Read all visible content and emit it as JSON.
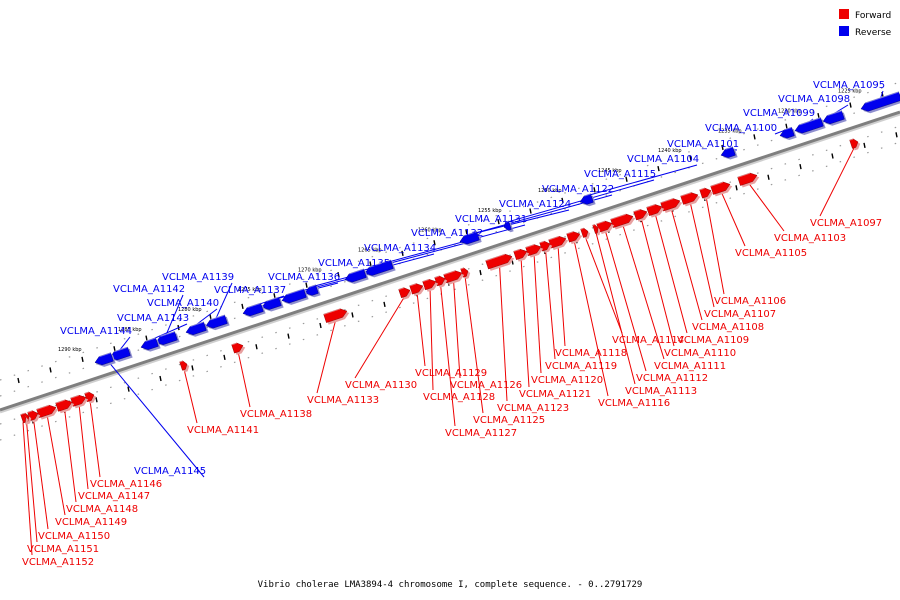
{
  "caption": "Vibrio cholerae LMA3894-4 chromosome I, complete sequence. - 0..2791729",
  "legend": [
    {
      "label": "Forward",
      "color": "#ee0000"
    },
    {
      "label": "Reverse",
      "color": "#0000ee"
    }
  ],
  "colors": {
    "forward": "#ee0000",
    "reverse": "#0000ee",
    "backbone": "#7f7f7f"
  },
  "scale_ticks": [
    {
      "kbp": 1225,
      "label": "1225 kbp"
    },
    {
      "kbp": 1230,
      "label": "1230 kbp"
    },
    {
      "kbp": 1235,
      "label": "1235 kbp"
    },
    {
      "kbp": 1240,
      "label": "1240 kbp"
    },
    {
      "kbp": 1245,
      "label": "1245 kbp"
    },
    {
      "kbp": 1250,
      "label": "1250 kbp"
    },
    {
      "kbp": 1255,
      "label": "1255 kbp"
    },
    {
      "kbp": 1260,
      "label": "1260 kbp"
    },
    {
      "kbp": 1265,
      "label": "1265 kbp"
    },
    {
      "kbp": 1270,
      "label": "1270 kbp"
    },
    {
      "kbp": 1275,
      "label": "1275 kbp"
    },
    {
      "kbp": 1280,
      "label": "1280 kbp"
    },
    {
      "kbp": 1285,
      "label": "1285 kbp"
    },
    {
      "kbp": 1290,
      "label": "1290 kbp"
    }
  ],
  "genes": [
    {
      "id": "VCLMA_A1095",
      "strand": "reverse"
    },
    {
      "id": "VCLMA_A1097",
      "strand": "forward"
    },
    {
      "id": "VCLMA_A1098",
      "strand": "reverse"
    },
    {
      "id": "VCLMA_A1099",
      "strand": "reverse"
    },
    {
      "id": "VCLMA_A1100",
      "strand": "reverse"
    },
    {
      "id": "VCLMA_A1101",
      "strand": "reverse"
    },
    {
      "id": "VCLMA_A1103",
      "strand": "forward"
    },
    {
      "id": "VCLMA_A1104",
      "strand": "reverse"
    },
    {
      "id": "VCLMA_A1105",
      "strand": "forward"
    },
    {
      "id": "VCLMA_A1106",
      "strand": "forward"
    },
    {
      "id": "VCLMA_A1107",
      "strand": "forward"
    },
    {
      "id": "VCLMA_A1108",
      "strand": "forward"
    },
    {
      "id": "VCLMA_A1109",
      "strand": "forward"
    },
    {
      "id": "VCLMA_A1110",
      "strand": "forward"
    },
    {
      "id": "VCLMA_A1111",
      "strand": "forward"
    },
    {
      "id": "VCLMA_A1112",
      "strand": "forward"
    },
    {
      "id": "VCLMA_A1113",
      "strand": "forward"
    },
    {
      "id": "VCLMA_A1114",
      "strand": "forward"
    },
    {
      "id": "VCLMA_A1115",
      "strand": "reverse"
    },
    {
      "id": "VCLMA_A1116",
      "strand": "forward"
    },
    {
      "id": "VCLMA_A1118",
      "strand": "forward"
    },
    {
      "id": "VCLMA_A1119",
      "strand": "forward"
    },
    {
      "id": "VCLMA_A1120",
      "strand": "forward"
    },
    {
      "id": "VCLMA_A1121",
      "strand": "forward"
    },
    {
      "id": "VCLMA_A1122",
      "strand": "reverse"
    },
    {
      "id": "VCLMA_A1123",
      "strand": "forward"
    },
    {
      "id": "VCLMA_A1124",
      "strand": "reverse"
    },
    {
      "id": "VCLMA_A1125",
      "strand": "forward"
    },
    {
      "id": "VCLMA_A1126",
      "strand": "forward"
    },
    {
      "id": "VCLMA_A1127",
      "strand": "forward"
    },
    {
      "id": "VCLMA_A1128",
      "strand": "forward"
    },
    {
      "id": "VCLMA_A1129",
      "strand": "forward"
    },
    {
      "id": "VCLMA_A1130",
      "strand": "forward"
    },
    {
      "id": "VCLMA_A1131",
      "strand": "reverse"
    },
    {
      "id": "VCLMA_A1132",
      "strand": "reverse"
    },
    {
      "id": "VCLMA_A1133",
      "strand": "forward"
    },
    {
      "id": "VCLMA_A1134",
      "strand": "reverse"
    },
    {
      "id": "VCLMA_A1135",
      "strand": "reverse"
    },
    {
      "id": "VCLMA_A1136",
      "strand": "reverse"
    },
    {
      "id": "VCLMA_A1137",
      "strand": "reverse"
    },
    {
      "id": "VCLMA_A1138",
      "strand": "forward"
    },
    {
      "id": "VCLMA_A1139",
      "strand": "reverse"
    },
    {
      "id": "VCLMA_A1140",
      "strand": "reverse"
    },
    {
      "id": "VCLMA_A1141",
      "strand": "forward"
    },
    {
      "id": "VCLMA_A1142",
      "strand": "reverse"
    },
    {
      "id": "VCLMA_A1143",
      "strand": "reverse"
    },
    {
      "id": "VCLMA_A1144",
      "strand": "reverse"
    },
    {
      "id": "VCLMA_A1145",
      "strand": "reverse"
    },
    {
      "id": "VCLMA_A1146",
      "strand": "forward"
    },
    {
      "id": "VCLMA_A1147",
      "strand": "forward"
    },
    {
      "id": "VCLMA_A1148",
      "strand": "forward"
    },
    {
      "id": "VCLMA_A1149",
      "strand": "forward"
    },
    {
      "id": "VCLMA_A1150",
      "strand": "forward"
    },
    {
      "id": "VCLMA_A1151",
      "strand": "forward"
    },
    {
      "id": "VCLMA_A1152",
      "strand": "forward"
    }
  ]
}
